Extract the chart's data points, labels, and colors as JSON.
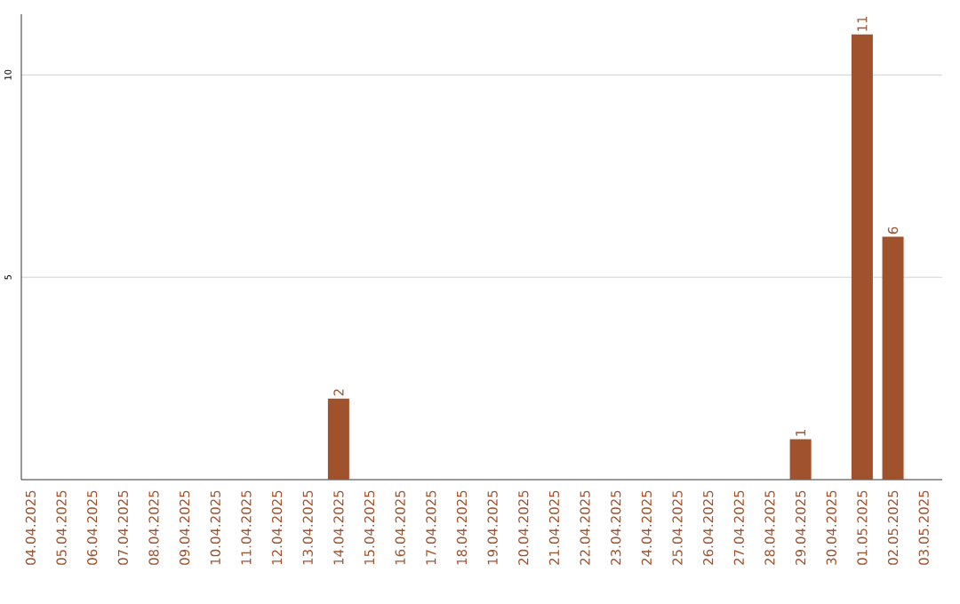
{
  "chart_data": {
    "type": "bar",
    "categories": [
      "04.04.2025",
      "05.04.2025",
      "06.04.2025",
      "07.04.2025",
      "08.04.2025",
      "09.04.2025",
      "10.04.2025",
      "11.04.2025",
      "12.04.2025",
      "13.04.2025",
      "14.04.2025",
      "15.04.2025",
      "16.04.2025",
      "17.04.2025",
      "18.04.2025",
      "19.04.2025",
      "20.04.2025",
      "21.04.2025",
      "22.04.2025",
      "23.04.2025",
      "24.04.2025",
      "25.04.2025",
      "26.04.2025",
      "27.04.2025",
      "28.04.2025",
      "29.04.2025",
      "30.04.2025",
      "01.05.2025",
      "02.05.2025",
      "03.05.2025"
    ],
    "values": [
      0,
      0,
      0,
      0,
      0,
      0,
      0,
      0,
      0,
      0,
      2,
      0,
      0,
      0,
      0,
      0,
      0,
      0,
      0,
      0,
      0,
      0,
      0,
      0,
      0,
      1,
      0,
      11,
      6,
      0
    ],
    "value_labels": [
      null,
      null,
      null,
      null,
      null,
      null,
      null,
      null,
      null,
      null,
      "2",
      null,
      null,
      null,
      null,
      null,
      null,
      null,
      null,
      null,
      null,
      null,
      null,
      null,
      null,
      "1",
      null,
      "11",
      "6",
      null
    ],
    "color": "#a0522d",
    "ylim": [
      0,
      11.5
    ],
    "yticks": [
      5,
      10
    ],
    "grid": "y"
  }
}
